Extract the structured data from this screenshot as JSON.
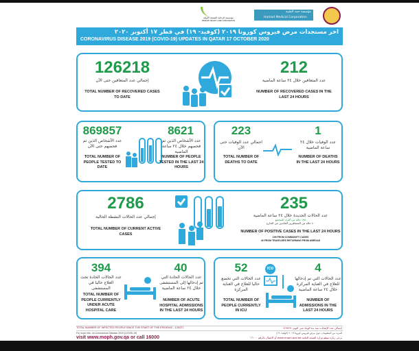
{
  "header": {
    "logos": [
      "Qatar Ministry of Public Health",
      "Hamad Medical Corporation",
      "Primary Health Care Corporation"
    ],
    "hmc_en": "Hamad Medical Corporation",
    "hmc_ar": "مؤسسة حمد الطبية",
    "phcc_ar": "مؤسسة الرعاية الصحية الأولية",
    "phcc_en": "PRIMARY HEALTH CARE CORPORATION",
    "title_ar": "اخر مستجدات مرض فيروس كورونا ٢٠١٩ (كوفيد- ١٩) في قطر ١٧ أكتوبر ٢٠٢٠",
    "title_en": "CORONAVIRUS DISEASE 2019 (COVID-19) UPDATES IN QATAR 17 OCTOBER 2020"
  },
  "colors": {
    "accent": "#2fa9dc",
    "number": "#1e9a4a",
    "banner": "#2fa9dc",
    "footer_line": "#8b1c4a"
  },
  "recovered": {
    "total": "126218",
    "total_ar": "إجمالي عدد المتعافين حتى الآن",
    "total_en": "TOTAL NUMBER OF RECOVERED CASES TO DATE",
    "day": "212",
    "day_ar": "عدد المتعافين خلال ٢٤ ساعة الماضية",
    "day_en": "NUMBER OF RECOVERED CASES IN THE LAST 24 HOURS"
  },
  "tested": {
    "total": "869857",
    "total_ar": "عدد الأشخاص الذين تم فحصهم حتى الآن",
    "total_en": "TOTAL NUMBER OF PEOPLE TESTED TO DATE",
    "day": "8621",
    "day_ar": "عدد الأشخاص الذين تم فحصهم خلال ٢٤ ساعة الماضية",
    "day_en": "NUMBER OF PEOPLE TESTED IN THE LAST 24 HOURS"
  },
  "deaths": {
    "total": "223",
    "total_ar": "اجمالي عدد الوفيات حتى الآن",
    "total_en": "TOTAL NUMBER OF DEATHS TO DATE",
    "day": "1",
    "day_ar": "عدد الوفيات خلال ٢٤ ساعة الماضية",
    "day_en": "NUMBER OF DEATHS IN THE LAST 24 HOURS"
  },
  "active": {
    "total": "2786",
    "total_ar": "إجمالي عدد الحالات النشطة الحالية",
    "total_en": "TOTAL NUMBER OF CURRENT ACTIVE CASES",
    "day": "235",
    "day_ar": "عدد الحالات الجديدة خلال ٢٤ ساعة الماضية",
    "community_ar": "١٩٥ حالة من أفراد المجتمع",
    "travelers_ar": "٤٠ حالة من المسافرين العائدين من الخارج",
    "day_en": "NUMBER OF POSITIVE CASES IN THE LAST 24 HOURS",
    "community_en": "195 FROM COMMUNITY CASES",
    "travelers_en": "40 FROM TRAVELERS RETURNING FROM ABROAD"
  },
  "acute": {
    "total": "394",
    "total_ar": "عدد الحالات الحادة تحت العلاج حاليا في المستشفى",
    "total_en": "TOTAL NUMBER OF PEOPLE CURRENTLY UNDER ACUTE HOSPITAL CARE",
    "day": "40",
    "day_ar": "عدد الحالات الحادة التي تم إدخالها إلى المستشفى خلال ٢٤ ساعة الماضية",
    "day_en": "NUMBER OF ACUTE HOSPITAL ADMISSIONS IN THE LAST 24 HOURS"
  },
  "icu": {
    "label": "ICU",
    "total": "52",
    "total_ar": "عدد الحالات التي تخضع حاليا للعلاج في العناية المركزة",
    "total_en": "TOTAL NUMBER OF PEOPLE CURRENTLY IN ICU",
    "day": "4",
    "day_ar": "عدد الحالات التي تم إدخالها للعلاج في العناية المركزة خلال ٢٤ ساعة الماضية",
    "day_en": "NUMBER OF ADMISSIONS IN THE LAST 24 HOURS"
  },
  "footer": {
    "infected_en": "TOTAL NUMBER OF INFECTED PEOPLE SINCE THE START OF THE EPIDEMIC : 129227",
    "infected_ar": "إجمالي عدد الإصابات منذ بدء الوباء حتى اليوم: ١٢٩٢٢٧",
    "more_en": "For more info. on Coronavirus Disease 2019 (COVID-19)",
    "visit_en": "visit www.moph.gov.qa or call 16000",
    "more_ar": "المزيد من المعلومات حول مرض فيروس كورونا ٢٠١٩ (كوفيد- ١٩)",
    "visit_ar": "يرجى زيارة موقع وزارة الصحة العامة www.moph.gov.qa أو الاتصال بالرقم ١٦٠٠٠"
  }
}
